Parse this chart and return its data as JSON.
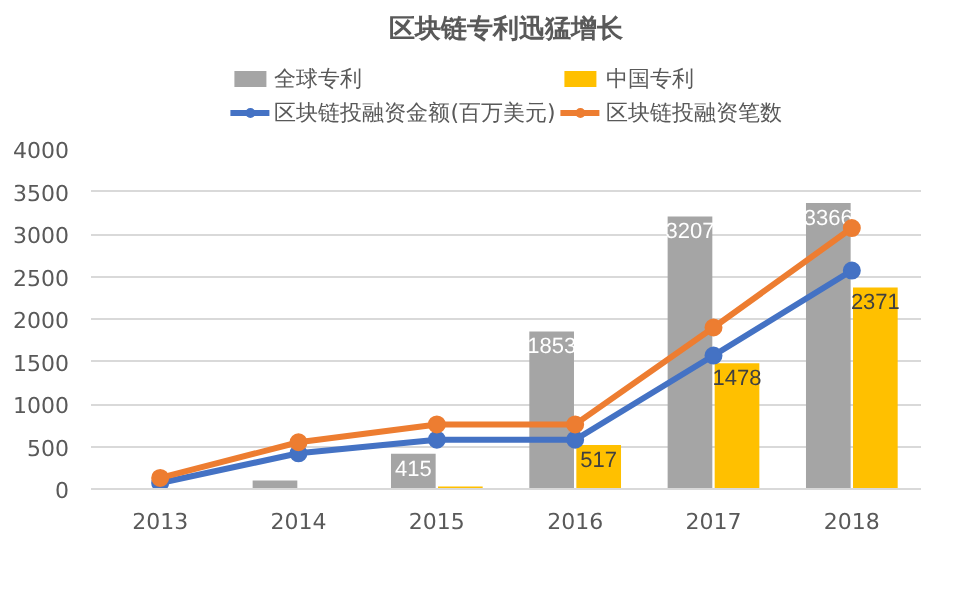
{
  "chart_data": {
    "type": "bar",
    "title": "区块链专利迅猛增长",
    "categories": [
      "2013",
      "2014",
      "2015",
      "2016",
      "2017",
      "2018"
    ],
    "series": [
      {
        "name": "全球专利",
        "color": "#a5a5a5",
        "values": [
          null,
          100,
          415,
          1853,
          3207,
          3366
        ],
        "value_labels": [
          null,
          null,
          "415",
          "1853",
          "3207",
          "3366"
        ]
      },
      {
        "name": "中国专利",
        "color": "#ffc000",
        "values": [
          null,
          null,
          30,
          517,
          1478,
          2371
        ],
        "value_labels": [
          null,
          null,
          null,
          "517",
          "1478",
          "2371"
        ]
      },
      {
        "name": "区块链投融资金额(百万美元)",
        "type": "line",
        "color": "#4472c4",
        "values": [
          70,
          420,
          580,
          580,
          1570,
          2570
        ]
      },
      {
        "name": "区块链投融资笔数",
        "type": "line",
        "color": "#ed7d31",
        "values": [
          130,
          550,
          760,
          760,
          1900,
          3070
        ]
      }
    ],
    "ylim": [
      0,
      4000
    ],
    "yticks": [
      0,
      500,
      1000,
      1500,
      2000,
      2500,
      3000,
      3500,
      4000
    ],
    "grid": "y",
    "legend": "top",
    "marker": "circle"
  }
}
